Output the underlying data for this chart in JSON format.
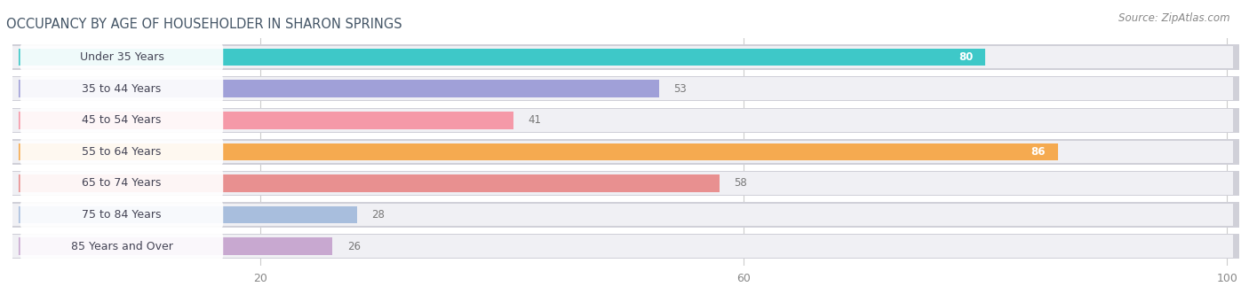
{
  "title": "OCCUPANCY BY AGE OF HOUSEHOLDER IN SHARON SPRINGS",
  "source": "Source: ZipAtlas.com",
  "categories": [
    "Under 35 Years",
    "35 to 44 Years",
    "45 to 54 Years",
    "55 to 64 Years",
    "65 to 74 Years",
    "75 to 84 Years",
    "85 Years and Over"
  ],
  "values": [
    80,
    53,
    41,
    86,
    58,
    28,
    26
  ],
  "bar_colors": [
    "#3ec8c8",
    "#a0a0d8",
    "#f599a8",
    "#f5aa50",
    "#e89090",
    "#a8bedd",
    "#c8a8d0"
  ],
  "xlim": [
    0,
    100
  ],
  "xticks": [
    20,
    60,
    100
  ],
  "title_fontsize": 10.5,
  "source_fontsize": 8.5,
  "label_fontsize": 9,
  "value_fontsize": 8.5,
  "background_color": "#ffffff",
  "row_bg": "#e8e8ec",
  "row_inner_bg": "#f4f4f6",
  "label_bg": "#ffffff"
}
